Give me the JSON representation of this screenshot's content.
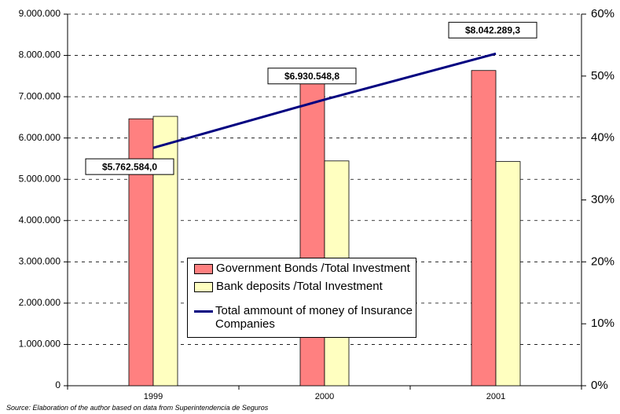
{
  "chart_data": {
    "type": "bar",
    "categories": [
      "1999",
      "2000",
      "2001"
    ],
    "series": [
      {
        "name": "Government Bonds /Total Investment",
        "color": "#ff8080",
        "axis": "y2",
        "values": [
          43.1,
          50.6,
          50.9
        ]
      },
      {
        "name": "Bank deposits /Total Investment",
        "color": "#ffffc0",
        "axis": "y2",
        "values": [
          43.5,
          36.3,
          36.2
        ]
      },
      {
        "name": "Total ammount of money of Insurance Companies",
        "color": "#000080",
        "type": "line",
        "axis": "y",
        "values": [
          5762584.0,
          6930548.8,
          8042289.3
        ],
        "value_labels": [
          "$5.762.584,0",
          "$6.930.548,8",
          "$8.042.289,3"
        ]
      }
    ],
    "ylim": [
      0,
      9000000
    ],
    "yticks": [
      0,
      {
        "value": 1000000,
        "label": "1.000.000"
      },
      {
        "value": 2000000,
        "label": "2.000.000"
      },
      {
        "value": 3000000,
        "label": "3.000.000"
      },
      {
        "value": 4000000,
        "label": "4.000.000"
      },
      {
        "value": 5000000,
        "label": "5.000.000"
      },
      {
        "value": 6000000,
        "label": "6.000.000"
      },
      {
        "value": 7000000,
        "label": "7.000.000"
      },
      {
        "value": 8000000,
        "label": "8.000.000"
      },
      {
        "value": 9000000,
        "label": "9.000.000"
      }
    ],
    "y2lim": [
      0,
      60
    ],
    "y2ticks": [
      {
        "value": 0,
        "label": "0%"
      },
      {
        "value": 10,
        "label": "10%"
      },
      {
        "value": 20,
        "label": "20%"
      },
      {
        "value": 30,
        "label": "30%"
      },
      {
        "value": 40,
        "label": "40%"
      },
      {
        "value": 50,
        "label": "50%"
      },
      {
        "value": 60,
        "label": "60%"
      }
    ],
    "grid": true,
    "source": "Source: Elaboration of the author based on data from Superintendencia de Seguros"
  }
}
